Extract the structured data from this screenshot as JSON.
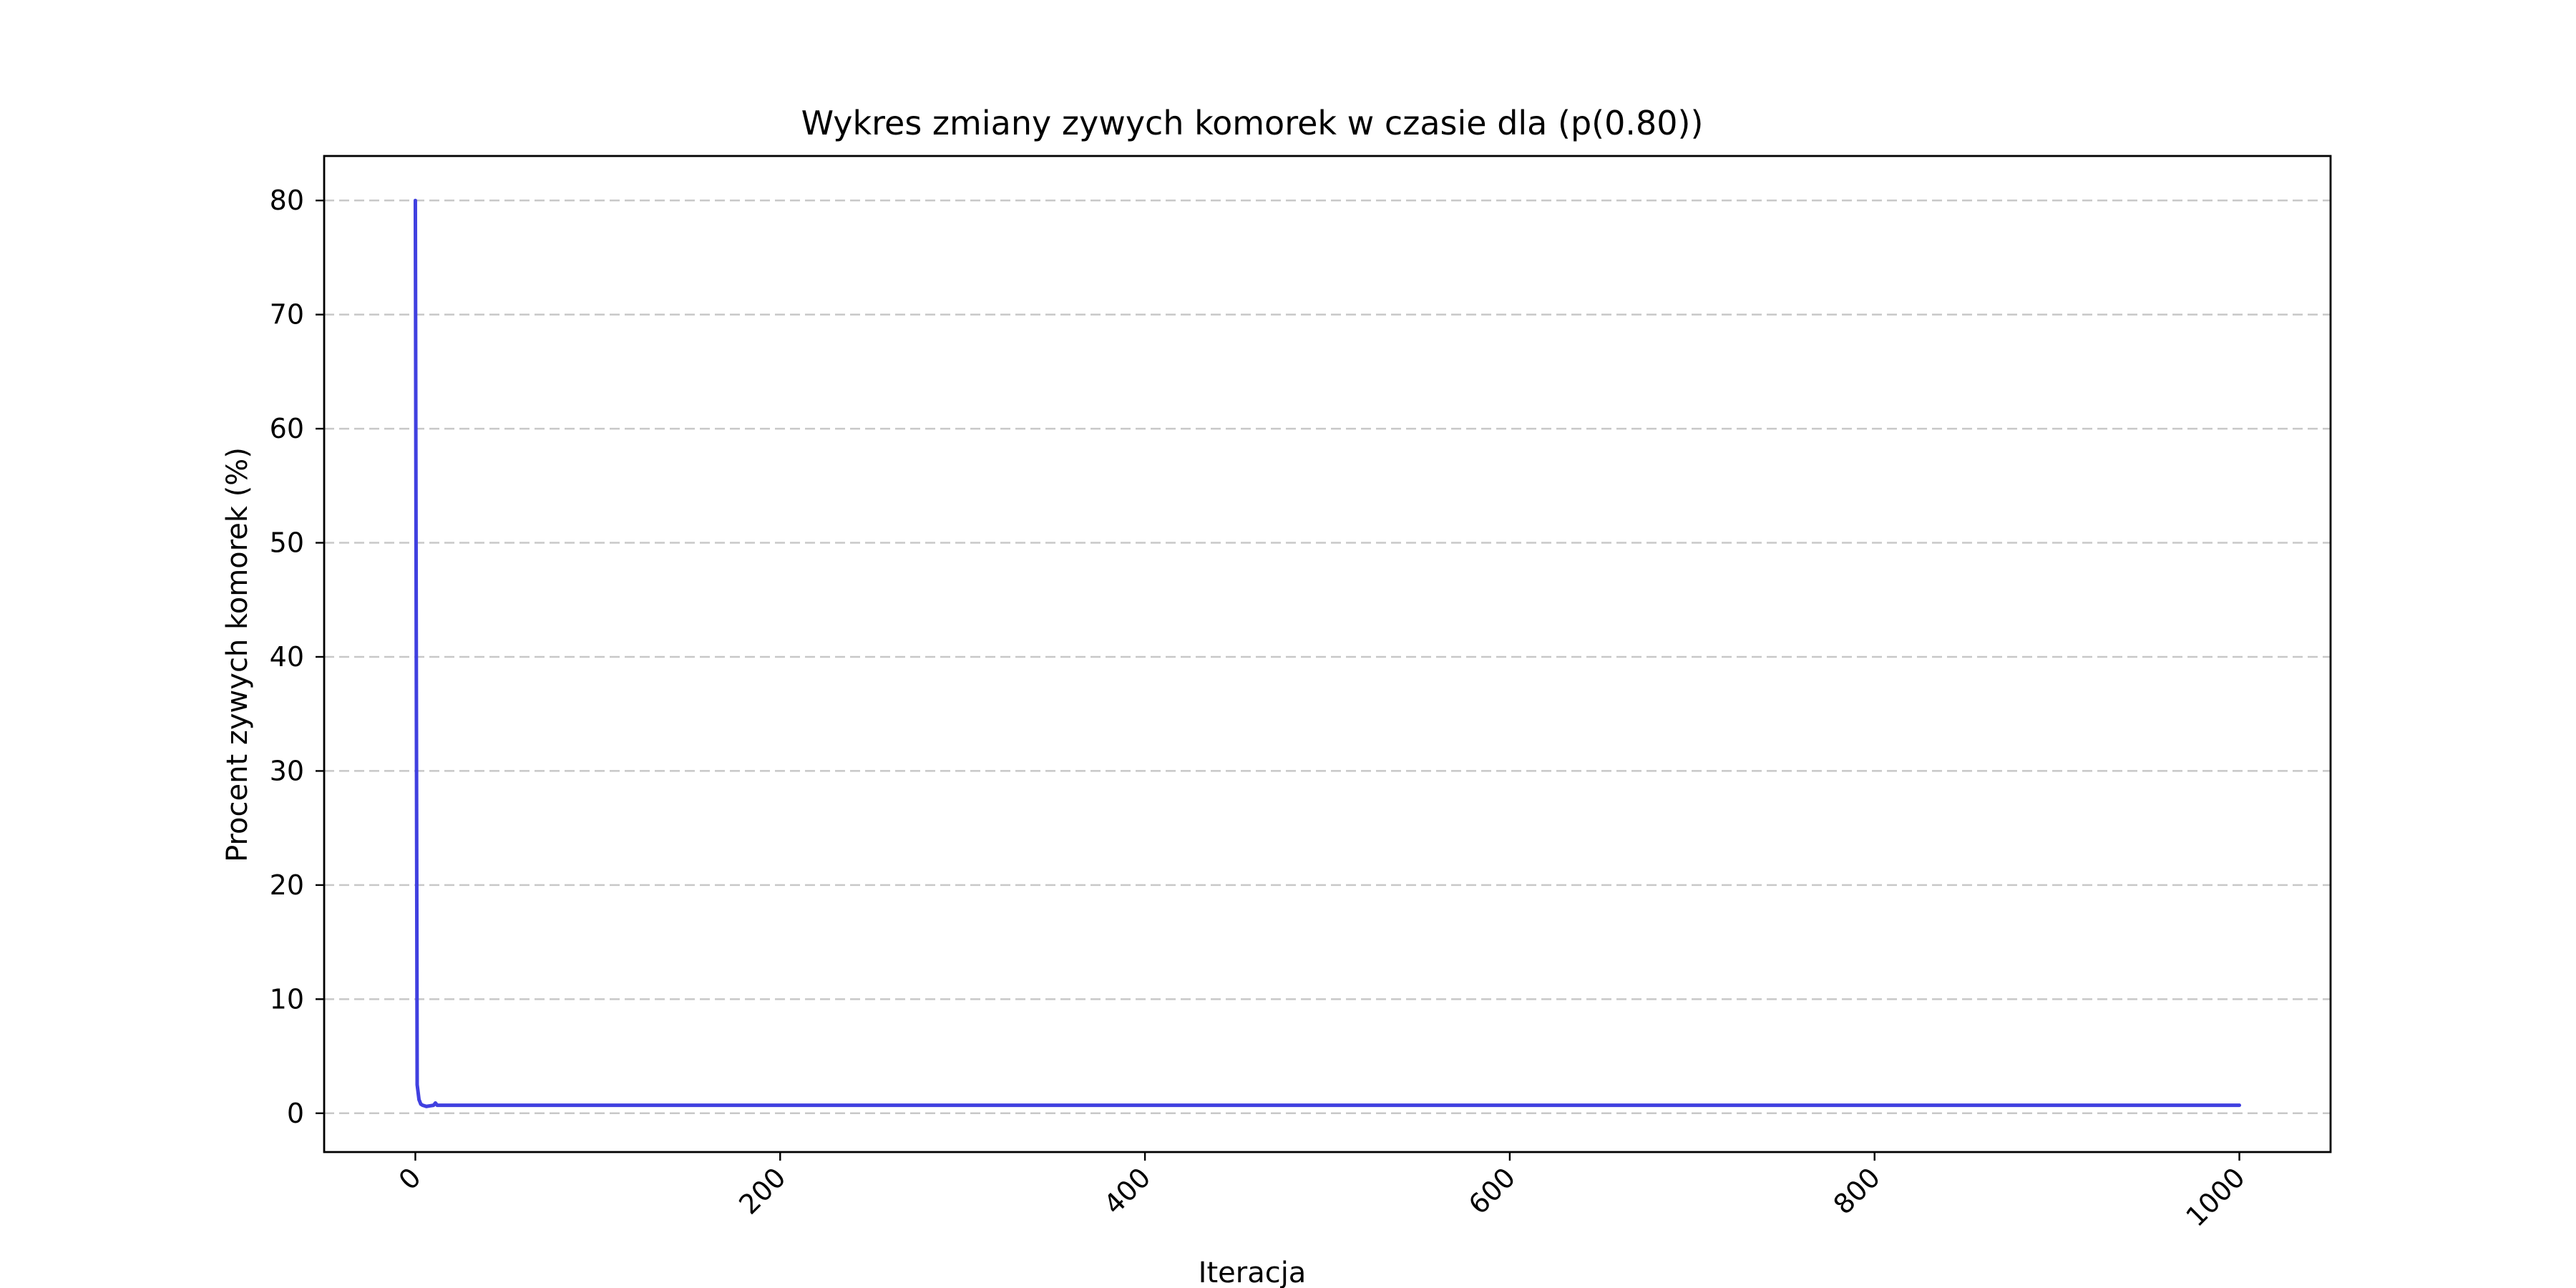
{
  "chart_data": {
    "type": "line",
    "title": "Wykres zmiany zywych komorek w czasie dla (p(0.80))",
    "xlabel": "Iteracja",
    "ylabel": "Procent zywych komorek (%)",
    "xlim": [
      -50,
      1050
    ],
    "ylim": [
      -3.4,
      83.9
    ],
    "xticks": [
      0,
      200,
      400,
      600,
      800,
      1000
    ],
    "xtick_labels": [
      "0",
      "200",
      "400",
      "600",
      "800",
      "1000"
    ],
    "xtick_rotation": -45,
    "yticks": [
      0,
      10,
      20,
      30,
      40,
      50,
      60,
      70,
      80
    ],
    "ytick_labels": [
      "0",
      "10",
      "20",
      "30",
      "40",
      "50",
      "60",
      "70",
      "80"
    ],
    "grid": "y-dashed",
    "legend": "none",
    "series": [
      {
        "color": "#4040e0",
        "x": [
          0,
          1,
          2,
          3,
          4,
          5,
          6,
          8,
          10,
          11,
          12,
          15,
          20,
          50,
          100,
          200,
          300,
          400,
          500,
          600,
          700,
          800,
          900,
          1000
        ],
        "y": [
          80,
          2.5,
          1.2,
          0.8,
          0.7,
          0.65,
          0.6,
          0.65,
          0.7,
          0.9,
          0.7,
          0.7,
          0.7,
          0.7,
          0.7,
          0.7,
          0.7,
          0.7,
          0.7,
          0.7,
          0.7,
          0.7,
          0.7,
          0.7
        ]
      }
    ]
  }
}
